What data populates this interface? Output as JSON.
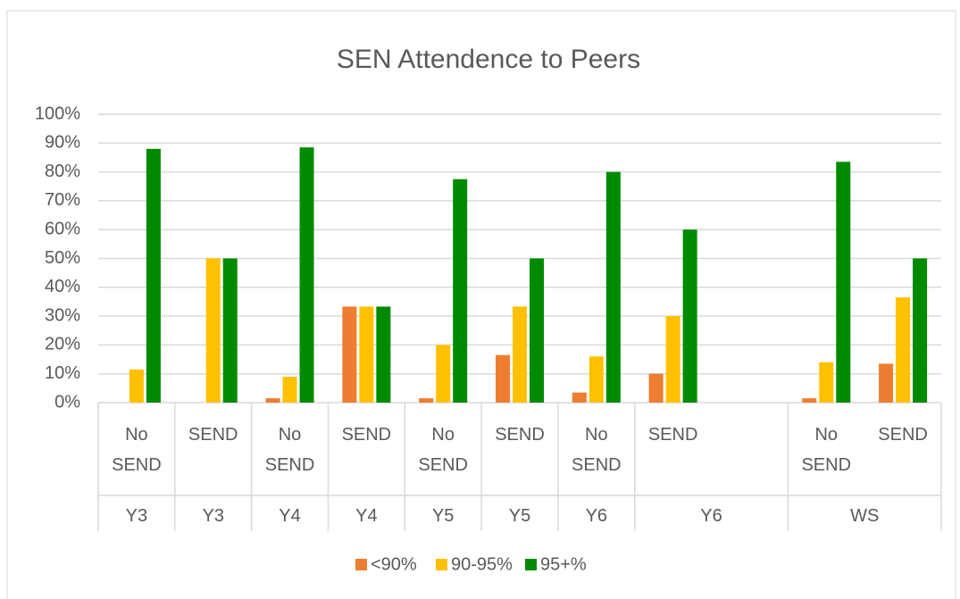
{
  "chart_data": {
    "type": "bar",
    "title": "SEN Attendence to Peers",
    "categories": [
      "No SEND",
      "SEND",
      "No SEND",
      "SEND",
      "No SEND",
      "SEND",
      "No SEND",
      "SEND",
      null,
      "No SEND",
      "SEND"
    ],
    "groups": [
      {
        "label": "Y3",
        "count": 1
      },
      {
        "label": "Y3",
        "count": 1
      },
      {
        "label": "Y4",
        "count": 1
      },
      {
        "label": "Y4",
        "count": 1
      },
      {
        "label": "Y5",
        "count": 1
      },
      {
        "label": "Y5",
        "count": 1
      },
      {
        "label": "Y6",
        "count": 1
      },
      {
        "label": "Y6",
        "count": 2
      },
      {
        "label": "WS",
        "count": 2
      }
    ],
    "series": [
      {
        "name": "<90%",
        "color": "#ed7d31",
        "values": [
          0,
          0,
          1.5,
          33.3,
          1.5,
          16.5,
          3.5,
          10,
          null,
          1.5,
          13.5
        ]
      },
      {
        "name": "90-95%",
        "color": "#ffc000",
        "values": [
          11.5,
          50,
          9,
          33.3,
          20,
          33.3,
          16,
          30,
          null,
          14,
          36.5
        ]
      },
      {
        "name": "95+%",
        "color": "#008a00",
        "values": [
          88,
          50,
          88.5,
          33.3,
          77.5,
          50,
          80,
          60,
          null,
          83.5,
          50
        ]
      }
    ],
    "ylim": [
      0,
      100
    ],
    "yticks": [
      {
        "value": 0,
        "label": "0%"
      },
      {
        "value": 10,
        "label": "10%"
      },
      {
        "value": 20,
        "label": "20%"
      },
      {
        "value": 30,
        "label": "30%"
      },
      {
        "value": 40,
        "label": "40%"
      },
      {
        "value": 50,
        "label": "50%"
      },
      {
        "value": 60,
        "label": "60%"
      },
      {
        "value": 70,
        "label": "70%"
      },
      {
        "value": 80,
        "label": "80%"
      },
      {
        "value": 90,
        "label": "90%"
      },
      {
        "value": 100,
        "label": "100%"
      }
    ],
    "grid": true,
    "legend": "bottom"
  }
}
